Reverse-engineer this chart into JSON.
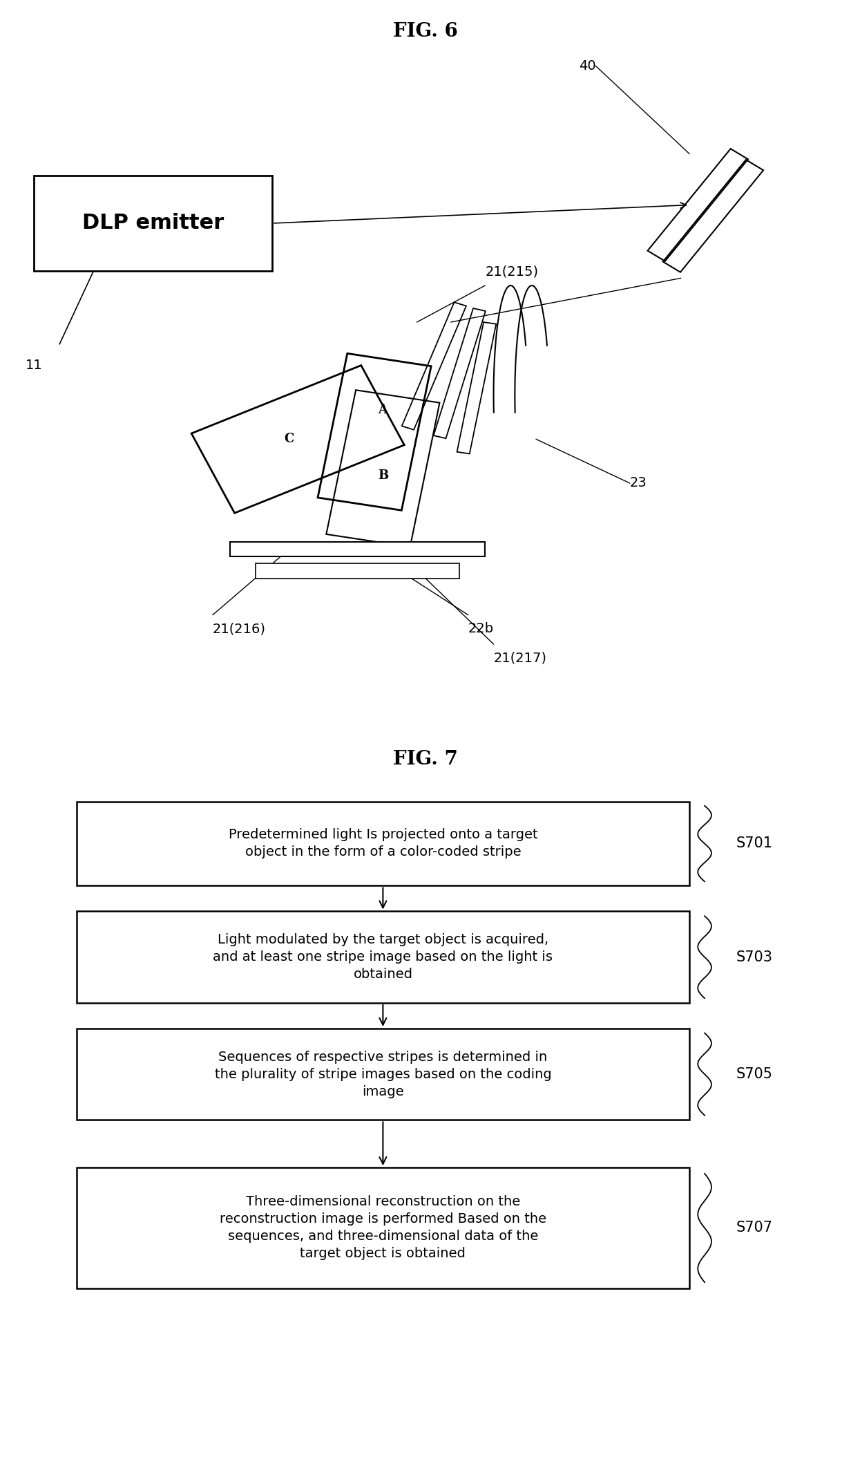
{
  "fig_title_top": "FIG. 6",
  "fig_title_bottom": "FIG. 7",
  "background_color": "#ffffff",
  "line_color": "#000000",
  "box_color": "#000000",
  "text_color": "#000000",
  "dlp_label": "DLP emitter",
  "label_11": "11",
  "label_40": "40",
  "label_21_215": "21(215)",
  "label_21_216": "21(216)",
  "label_21_217": "21(217)",
  "label_22b": "22b",
  "label_23": "23",
  "flowchart_boxes": [
    {
      "label": "S701",
      "text": "Predetermined light Is projected onto a target\nobject in the form of a color-coded stripe"
    },
    {
      "label": "S703",
      "text": "Light modulated by the target object is acquired,\nand at least one stripe image based on the light is\nobtained"
    },
    {
      "label": "S705",
      "text": "Sequences of respective stripes is determined in\nthe plurality of stripe images based on the coding\nimage"
    },
    {
      "label": "S707",
      "text": "Three-dimensional reconstruction on the\nreconstruction image is performed Based on the\nsequences, and three-dimensional data of the\ntarget object is obtained"
    }
  ],
  "font_size_title": 20,
  "font_size_label": 14,
  "font_size_box_text": 14,
  "font_size_step_label": 15,
  "font_size_dlp": 22
}
